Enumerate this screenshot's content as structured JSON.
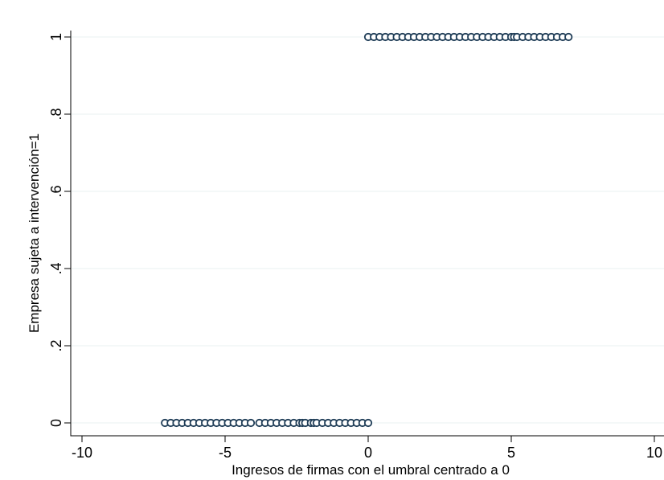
{
  "chart_data": {
    "type": "scatter",
    "title": "",
    "xlabel": "Ingresos de firmas con el umbral centrado a 0",
    "ylabel": "Empresa sujeta a intervención=1",
    "xlim": [
      -10,
      10
    ],
    "ylim": [
      0,
      1
    ],
    "grid": true,
    "legend": "none",
    "x_ticks": [
      {
        "value": -10,
        "label": "-10"
      },
      {
        "value": -5,
        "label": "-5"
      },
      {
        "value": 0,
        "label": "0"
      },
      {
        "value": 5,
        "label": "5"
      },
      {
        "value": 10,
        "label": "10"
      }
    ],
    "y_ticks": [
      {
        "value": 0,
        "label": "0"
      },
      {
        "value": 0.2,
        "label": ".2"
      },
      {
        "value": 0.4,
        "label": ".4"
      },
      {
        "value": 0.6,
        "label": ".6"
      },
      {
        "value": 0.8,
        "label": ".8"
      },
      {
        "value": 1,
        "label": "1"
      }
    ],
    "series": [
      {
        "values_x": [
          -7.1,
          -6.9,
          -6.7,
          -6.5,
          -6.3,
          -6.1,
          -5.9,
          -5.7,
          -5.5,
          -5.3,
          -5.1,
          -4.9,
          -4.7,
          -4.5,
          -4.3,
          -4.1,
          -3.8,
          -3.6,
          -3.4,
          -3.2,
          -3.0,
          -2.8,
          -2.6,
          -2.4,
          -2.3,
          -2.2,
          -2.0,
          -1.9,
          -1.8,
          -1.6,
          -1.4,
          -1.2,
          -1.0,
          -0.8,
          -0.6,
          -0.4,
          -0.2,
          0.0
        ],
        "values_y": [
          0,
          0,
          0,
          0,
          0,
          0,
          0,
          0,
          0,
          0,
          0,
          0,
          0,
          0,
          0,
          0,
          0,
          0,
          0,
          0,
          0,
          0,
          0,
          0,
          0,
          0,
          0,
          0,
          0,
          0,
          0,
          0,
          0,
          0,
          0,
          0,
          0,
          0
        ]
      },
      {
        "values_x": [
          0.0,
          0.2,
          0.4,
          0.6,
          0.8,
          1.0,
          1.2,
          1.4,
          1.6,
          1.8,
          2.0,
          2.2,
          2.4,
          2.6,
          2.8,
          3.0,
          3.2,
          3.4,
          3.6,
          3.8,
          4.0,
          4.2,
          4.4,
          4.6,
          4.8,
          5.0,
          5.1,
          5.2,
          5.4,
          5.6,
          5.8,
          6.0,
          6.2,
          6.4,
          6.6,
          6.8,
          7.0
        ],
        "values_y": [
          1,
          1,
          1,
          1,
          1,
          1,
          1,
          1,
          1,
          1,
          1,
          1,
          1,
          1,
          1,
          1,
          1,
          1,
          1,
          1,
          1,
          1,
          1,
          1,
          1,
          1,
          1,
          1,
          1,
          1,
          1,
          1,
          1,
          1,
          1,
          1,
          1
        ]
      }
    ],
    "colors": {
      "marker_fill": "#ffffff",
      "marker_stroke": "#1f3d57",
      "gridline": "#eaf0f2",
      "axis": "#000000"
    }
  }
}
